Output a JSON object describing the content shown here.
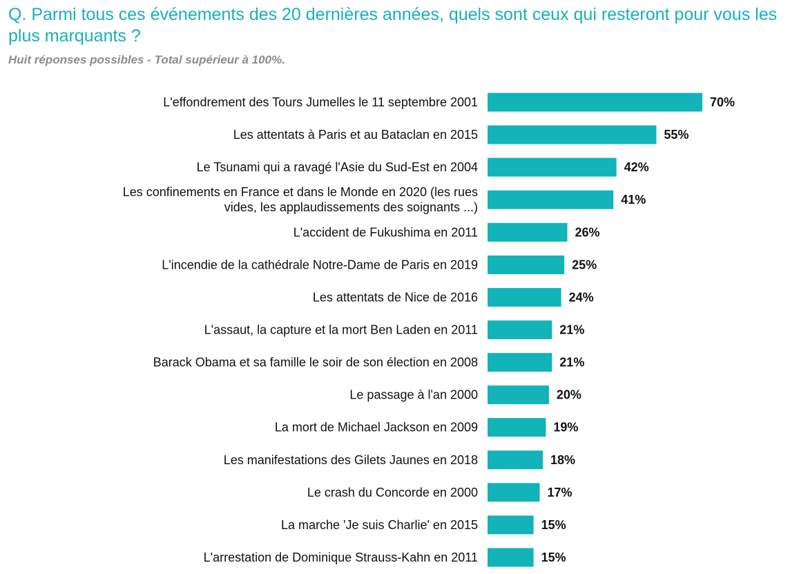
{
  "header": {
    "question": "Q. Parmi tous ces événements des 20 dernières années, quels sont ceux qui resteront pour vous les plus marquants ?",
    "subtitle": "Huit réponses possibles - Total supérieur à 100%."
  },
  "colors": {
    "bar": "#12b3b9",
    "title": "#19b0b8",
    "subtitle": "#8c8c8c",
    "text": "#111111"
  },
  "chart_data": {
    "type": "bar",
    "orientation": "horizontal",
    "title": "Q. Parmi tous ces événements des 20 dernières années, quels sont ceux qui resteront pour vous les plus marquants ?",
    "subtitle": "Huit réponses possibles - Total supérieur à 100%.",
    "xlabel": "",
    "ylabel": "",
    "unit": "%",
    "grid": false,
    "legend": "none",
    "categories": [
      [
        "L'effondrement des Tours Jumelles le 11 septembre 2001"
      ],
      [
        "Les attentats à Paris et au Bataclan en 2015"
      ],
      [
        "Le Tsunami qui a ravagé l'Asie du Sud-Est en 2004"
      ],
      [
        "Les confinements en France et dans le Monde en 2020 (les rues",
        "vides, les applaudissements des soignants ...)"
      ],
      [
        "L'accident de Fukushima en 2011"
      ],
      [
        "L'incendie de la cathédrale Notre-Dame de Paris en 2019"
      ],
      [
        "Les attentats de Nice de 2016"
      ],
      [
        "L'assaut, la capture et la mort Ben Laden en 2011"
      ],
      [
        "Barack Obama et sa famille le soir de son élection en 2008"
      ],
      [
        "Le passage à l'an 2000"
      ],
      [
        "La mort de Michael Jackson en 2009"
      ],
      [
        "Les manifestations des Gilets Jaunes en 2018"
      ],
      [
        "Le crash du Concorde en 2000"
      ],
      [
        "La marche 'Je suis Charlie' en 2015"
      ],
      [
        "L'arrestation de Dominique Strauss-Kahn en 2011"
      ]
    ],
    "values": [
      70,
      55,
      42,
      41,
      26,
      25,
      24,
      21,
      21,
      20,
      19,
      18,
      17,
      15,
      15
    ],
    "value_labels": [
      "70%",
      "55%",
      "42%",
      "41%",
      "26%",
      "25%",
      "24%",
      "21%",
      "21%",
      "20%",
      "19%",
      "18%",
      "17%",
      "15%",
      "15%"
    ]
  }
}
